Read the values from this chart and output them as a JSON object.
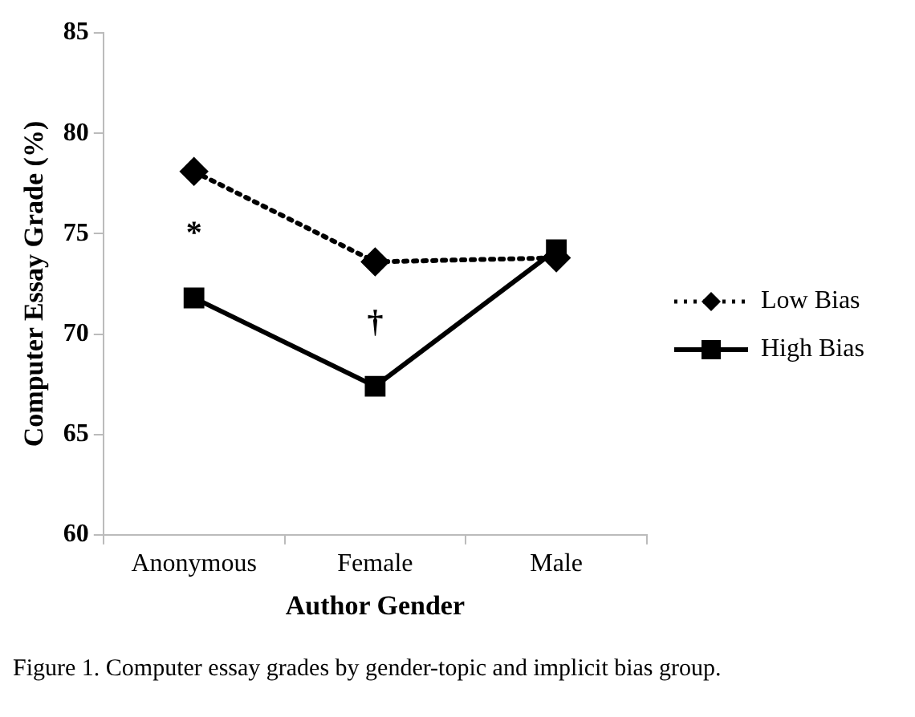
{
  "chart_data": {
    "type": "line",
    "xlabel": "Author Gender",
    "ylabel": "Computer Essay Grade (%)",
    "categories": [
      "Anonymous",
      "Female",
      "Male"
    ],
    "series": [
      {
        "name": "Low Bias",
        "color": "#000000",
        "values": [
          78.1,
          73.6,
          73.8
        ],
        "marker": "diamond",
        "line_style": "dotted"
      },
      {
        "name": "High Bias",
        "color": "#000000",
        "values": [
          71.8,
          67.4,
          74.2
        ],
        "marker": "square",
        "line_style": "solid"
      }
    ],
    "ylim": [
      60,
      85
    ],
    "yticks": [
      60,
      65,
      70,
      75,
      80,
      85
    ],
    "grid": false,
    "legend": "right",
    "annotations": [
      "*",
      "†",
      "Figure 1. Computer essay grades by gender-topic and implicit bias group."
    ]
  }
}
